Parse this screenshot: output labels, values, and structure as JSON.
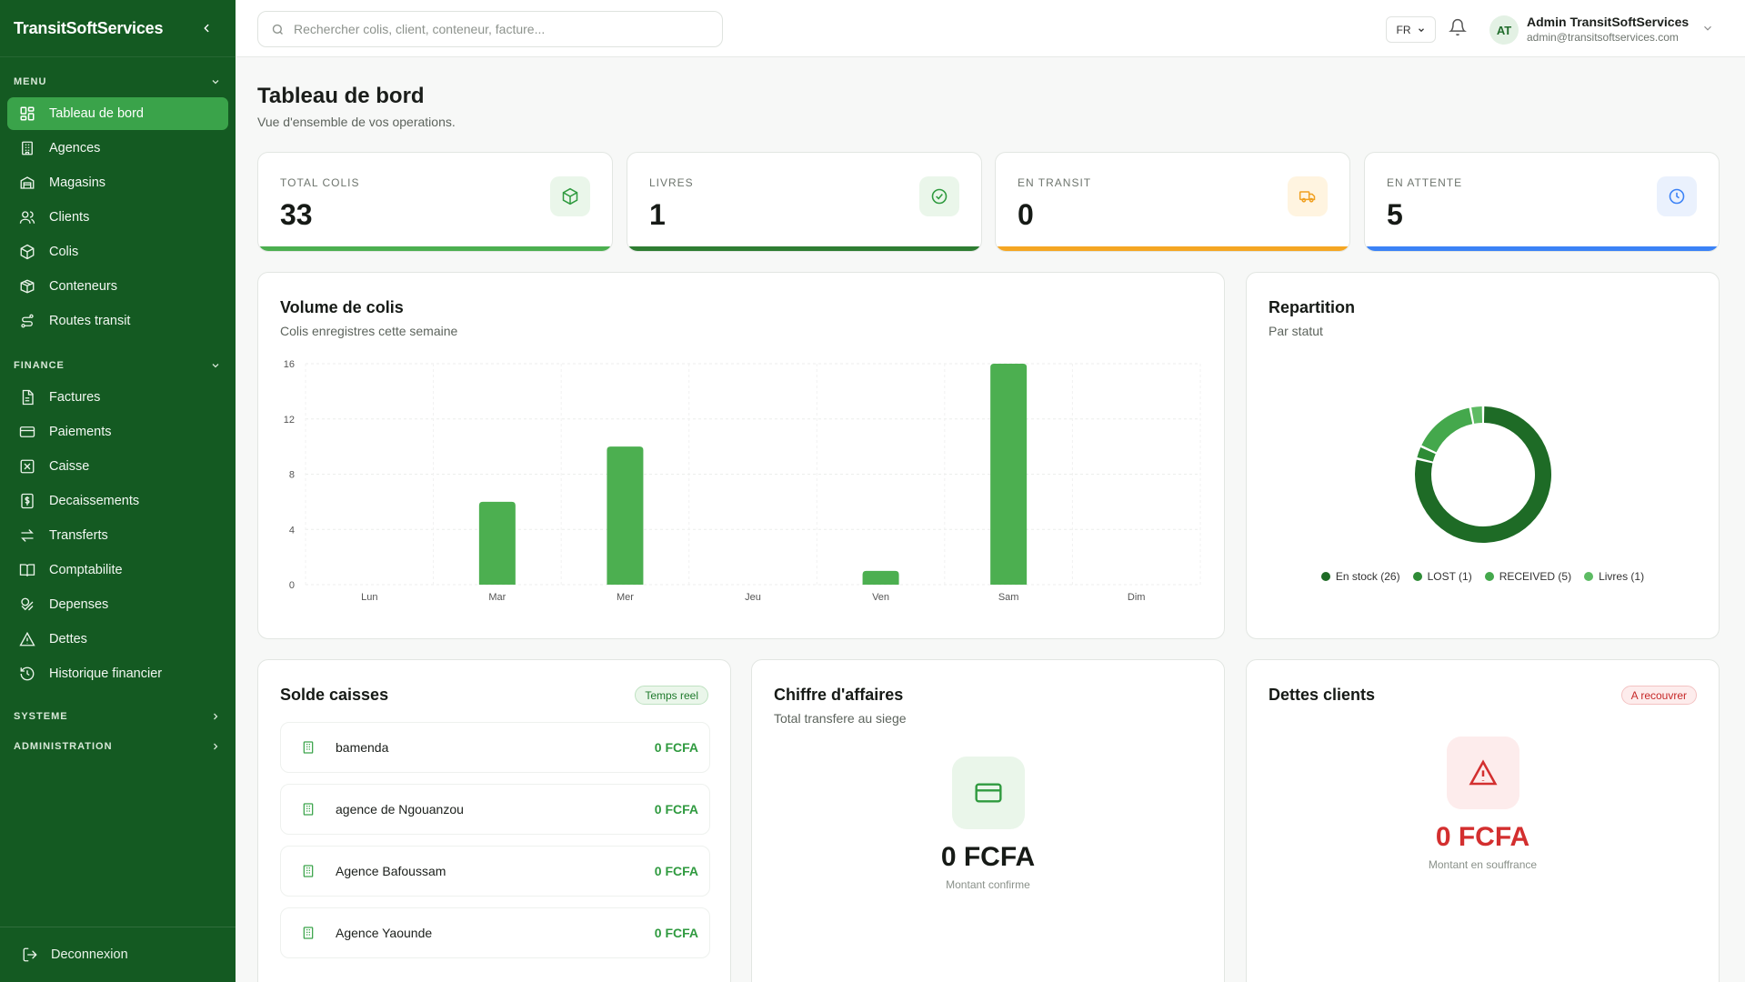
{
  "sidebar": {
    "brand": "TransitSoftServices",
    "sections": {
      "menu": "MENU",
      "finance": "FINANCE",
      "systeme": "SYSTEME",
      "administration": "ADMINISTRATION"
    },
    "menu_items": [
      {
        "label": "Tableau de bord",
        "icon": "dashboard-icon"
      },
      {
        "label": "Agences",
        "icon": "building-icon"
      },
      {
        "label": "Magasins",
        "icon": "warehouse-icon"
      },
      {
        "label": "Clients",
        "icon": "users-icon"
      },
      {
        "label": "Colis",
        "icon": "package-icon"
      },
      {
        "label": "Conteneurs",
        "icon": "container-icon"
      },
      {
        "label": "Routes transit",
        "icon": "route-icon"
      }
    ],
    "finance_items": [
      {
        "label": "Factures",
        "icon": "invoice-icon"
      },
      {
        "label": "Paiements",
        "icon": "credit-card-icon"
      },
      {
        "label": "Caisse",
        "icon": "cash-register-icon"
      },
      {
        "label": "Decaissements",
        "icon": "receipt-dollar-icon"
      },
      {
        "label": "Transferts",
        "icon": "transfer-icon"
      },
      {
        "label": "Comptabilite",
        "icon": "book-icon"
      },
      {
        "label": "Depenses",
        "icon": "coins-icon"
      },
      {
        "label": "Dettes",
        "icon": "warning-icon"
      },
      {
        "label": "Historique financier",
        "icon": "history-icon"
      }
    ],
    "logout": "Deconnexion"
  },
  "topbar": {
    "search_placeholder": "Rechercher colis, client, conteneur, facture...",
    "lang": "FR",
    "avatar": "AT",
    "user_name": "Admin TransitSoftServices",
    "user_email": "admin@transitsoftservices.com"
  },
  "page": {
    "title": "Tableau de bord",
    "subtitle": "Vue d'ensemble de vos operations."
  },
  "stats": [
    {
      "label": "TOTAL COLIS",
      "value": "33",
      "color": "#4caf50",
      "icon_bg": "#eaf6ea",
      "icon_color": "#2f9a3f"
    },
    {
      "label": "LIVRES",
      "value": "1",
      "color": "#2e7d32",
      "icon_bg": "#eaf6ea",
      "icon_color": "#2f9a3f"
    },
    {
      "label": "EN TRANSIT",
      "value": "0",
      "color": "#f5a623",
      "icon_bg": "#fff4e0",
      "icon_color": "#f0a020"
    },
    {
      "label": "EN ATTENTE",
      "value": "5",
      "color": "#3b82f6",
      "icon_bg": "#eaf1fd",
      "icon_color": "#3b82f6"
    }
  ],
  "volume": {
    "title": "Volume de colis",
    "subtitle": "Colis enregistres cette semaine"
  },
  "chart_data": [
    {
      "type": "bar",
      "categories": [
        "Lun",
        "Mar",
        "Mer",
        "Jeu",
        "Ven",
        "Sam",
        "Dim"
      ],
      "values": [
        0,
        6,
        10,
        0,
        1,
        16,
        0
      ],
      "yticks": [
        0,
        4,
        8,
        12,
        16
      ],
      "ylim": [
        0,
        16
      ],
      "grid": true,
      "color": "#4caf50"
    },
    {
      "type": "pie",
      "variant": "donut",
      "legend_position": "bottom",
      "slices": [
        {
          "name": "En stock (26)",
          "value": 26,
          "color": "#1e6b26"
        },
        {
          "name": "LOST (1)",
          "value": 1,
          "color": "#2e8b36"
        },
        {
          "name": "RECEIVED (5)",
          "value": 5,
          "color": "#44a84c"
        },
        {
          "name": "Livres (1)",
          "value": 1,
          "color": "#5dbb63"
        }
      ]
    }
  ],
  "repartition": {
    "title": "Repartition",
    "subtitle": "Par statut"
  },
  "solde": {
    "title": "Solde caisses",
    "badge": "Temps reel",
    "rows": [
      {
        "name": "bamenda",
        "amount": "0 FCFA"
      },
      {
        "name": "agence de Ngouanzou",
        "amount": "0 FCFA"
      },
      {
        "name": "Agence Bafoussam",
        "amount": "0 FCFA"
      },
      {
        "name": "Agence Yaounde",
        "amount": "0 FCFA"
      }
    ]
  },
  "ca": {
    "title": "Chiffre d'affaires",
    "subtitle": "Total transfere au siege",
    "value": "0 FCFA",
    "caption": "Montant confirme"
  },
  "dettes": {
    "title": "Dettes clients",
    "badge": "A recouvrer",
    "value": "0 FCFA",
    "caption": "Montant en souffrance"
  }
}
